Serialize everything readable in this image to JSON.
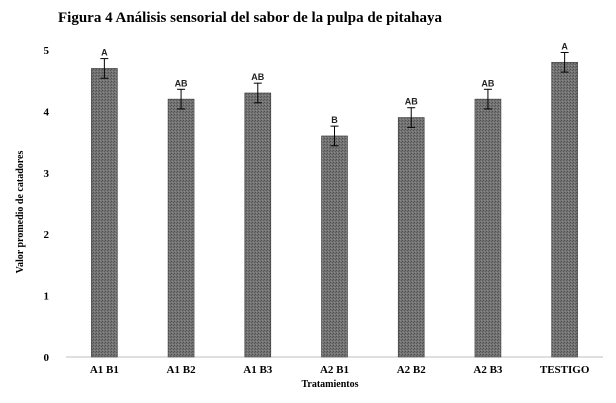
{
  "chart_data": {
    "type": "bar",
    "title": "Figura 4 Análisis sensorial  del sabor de la pulpa de pitahaya",
    "xlabel": "Tratamientos",
    "ylabel": "Valor promedio de catadores",
    "categories": [
      "A1 B1",
      "A1 B2",
      "A1 B3",
      "A2 B1",
      "A2 B2",
      "A2 B3",
      "TESTIGO"
    ],
    "values": [
      4.7,
      4.2,
      4.3,
      3.6,
      3.9,
      4.2,
      4.8
    ],
    "error": [
      0.16,
      0.16,
      0.16,
      0.16,
      0.16,
      0.16,
      0.16
    ],
    "significance": [
      "A",
      "AB",
      "AB",
      "B",
      "AB",
      "AB",
      "A"
    ],
    "ylim": [
      0,
      5
    ],
    "yticks": [
      "0",
      "1",
      "2",
      "3",
      "4",
      "5"
    ],
    "grid": false,
    "legend": "none",
    "bar_color": "#6a6a6a",
    "axis_color": "#bfbfbf"
  }
}
